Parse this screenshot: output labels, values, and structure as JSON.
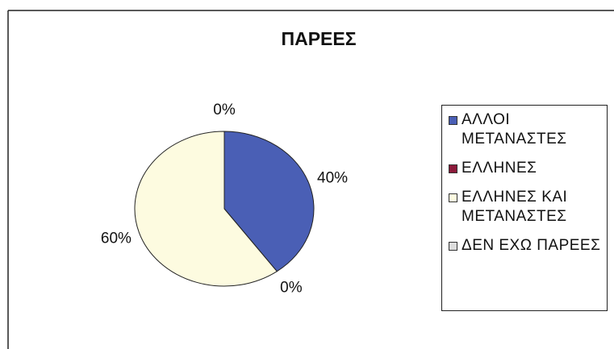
{
  "chart_data": {
    "type": "pie",
    "title": "ΠΑΡΕΕΣ",
    "categories": [
      "ΑΛΛΟΙ ΜΕΤΑΝΑΣΤΕΣ",
      "ΕΛΛΗΝΕΣ",
      "ΕΛΛΗΝΕΣ ΚΑΙ ΜΕΤΑΝΑΣΤΕΣ",
      "ΔΕΝ ΕΧΩ ΠΑΡΕΕΣ"
    ],
    "values": [
      40,
      0,
      60,
      0
    ],
    "value_labels": [
      "40%",
      "0%",
      "60%",
      "0%"
    ],
    "colors": [
      "#4a5fb5",
      "#8b1a3a",
      "#fdfbe0",
      "#dcdcdc"
    ],
    "legend": "right"
  }
}
